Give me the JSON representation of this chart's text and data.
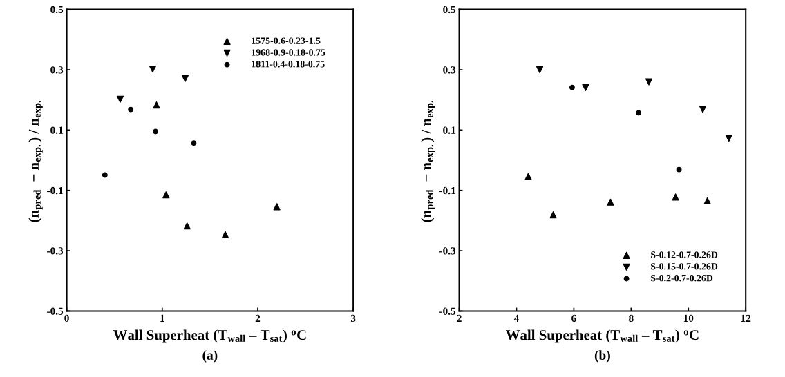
{
  "chart_data": [
    {
      "type": "scatter",
      "xlabel": "Wall Superheat (T$_{wall}$ – T$_{sat}$) $^{o}$C",
      "ylabel": "(n$_{pred}$  − n$_{exp.}$) / n$_{exp.}$",
      "annotations": [
        "(a)"
      ],
      "xlim": [
        0,
        3
      ],
      "xticks": [
        0,
        1,
        2,
        3
      ],
      "ylim": [
        -0.5,
        0.5
      ],
      "yticks": [
        -0.5,
        -0.3,
        -0.1,
        0.1,
        0.3,
        0.5
      ],
      "grid": false,
      "legend": "top right",
      "series": [
        {
          "name": "1575-0.6-0.23-1.5",
          "color": "#000000",
          "marker": "triangle",
          "x": [
            0.94,
            1.04,
            1.26,
            1.66,
            2.2
          ],
          "values": [
            0.183,
            -0.115,
            -0.218,
            -0.247,
            -0.154
          ]
        },
        {
          "name": "1968-0.9-0.18-0.75",
          "color": "#000000",
          "marker": "triangle_down",
          "x": [
            0.56,
            0.9,
            1.24
          ],
          "values": [
            0.202,
            0.302,
            0.271
          ]
        },
        {
          "name": "1811-0.4-0.18-0.75",
          "color": "#000000",
          "marker": "circle",
          "x": [
            0.4,
            0.67,
            0.93,
            1.33
          ],
          "values": [
            -0.049,
            0.168,
            0.095,
            0.057
          ]
        }
      ]
    },
    {
      "type": "scatter",
      "xlabel": "Wall Superheat (T$_{wall}$ – T$_{sat}$) $^{o}$C",
      "ylabel": "(n$_{pred}$  − n$_{exp.}$) / n$_{exp.}$",
      "annotations": [
        "(b)"
      ],
      "xlim": [
        2,
        12
      ],
      "xticks": [
        2,
        4,
        6,
        8,
        10,
        12
      ],
      "ylim": [
        -0.5,
        0.5
      ],
      "yticks": [
        -0.5,
        -0.3,
        -0.1,
        0.1,
        0.3,
        0.5
      ],
      "grid": false,
      "legend": "bottom right",
      "series": [
        {
          "name": "S-0.12-0.7-0.26D",
          "color": "#000000",
          "marker": "triangle",
          "x": [
            4.41,
            5.28,
            7.28,
            9.55,
            10.66
          ],
          "values": [
            -0.054,
            -0.181,
            -0.139,
            -0.122,
            -0.135
          ]
        },
        {
          "name": "S-0.15-0.7-0.26D",
          "color": "#000000",
          "marker": "triangle_down",
          "x": [
            4.81,
            6.41,
            8.62,
            10.5,
            11.41
          ],
          "values": [
            0.3,
            0.241,
            0.26,
            0.169,
            0.073
          ]
        },
        {
          "name": "S-0.2-0.7-0.26D",
          "color": "#000000",
          "marker": "circle",
          "x": [
            5.94,
            8.26,
            9.67
          ],
          "values": [
            0.241,
            0.157,
            -0.031
          ]
        }
      ]
    }
  ]
}
